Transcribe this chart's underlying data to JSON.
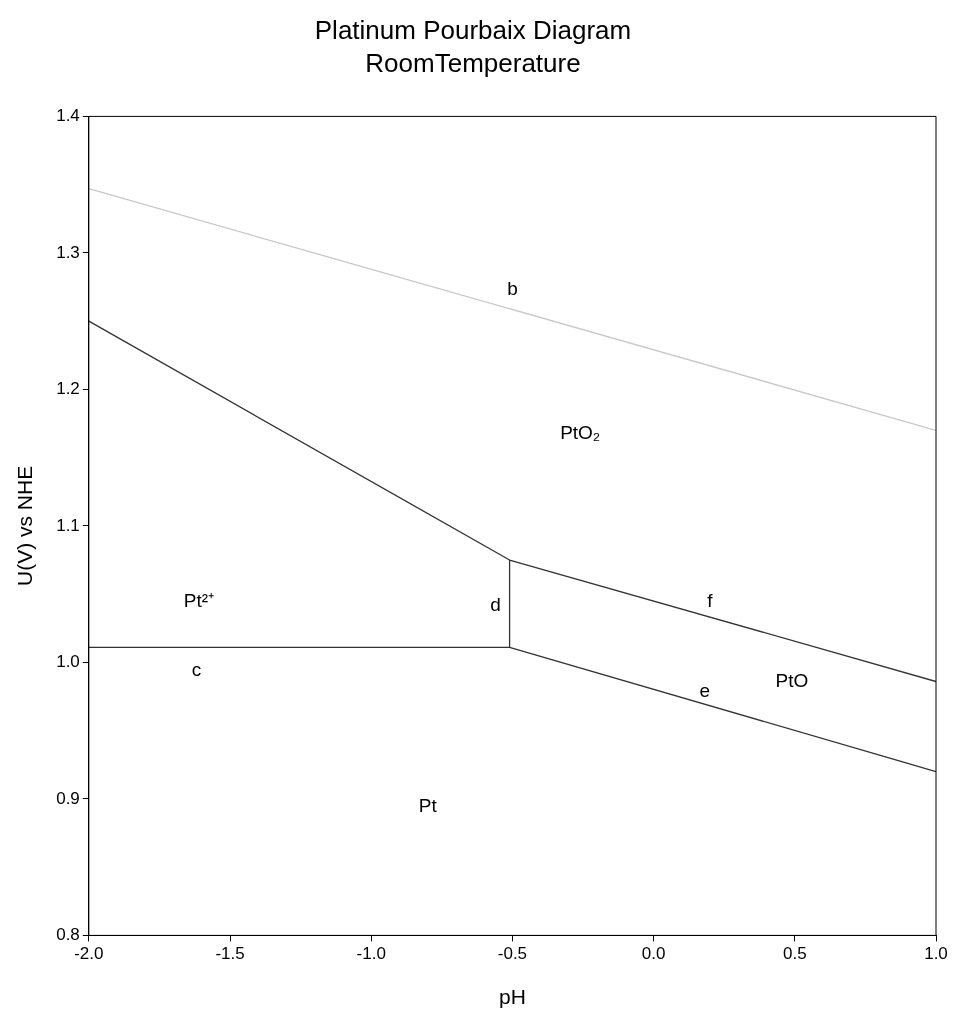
{
  "chart_data": {
    "type": "line",
    "title": "Platinum Pourbaix Diagram",
    "subtitle": "RoomTemperature",
    "xlabel": "pH",
    "ylabel": "U(V) vs NHE",
    "series": [
      {
        "color": "#c8c8c8",
        "x": [
          -2,
          1
        ],
        "values": [
          1.347,
          1.17
        ]
      },
      {
        "color": "#333333",
        "x": [
          -2,
          -0.51,
          1
        ],
        "values": [
          1.25,
          1.075,
          0.986
        ]
      },
      {
        "color": "#333333",
        "x": [
          -2,
          -0.51,
          1
        ],
        "values": [
          1.011,
          1.011,
          0.92
        ]
      },
      {
        "color": "#333333",
        "x": [
          -0.51,
          -0.51
        ],
        "values": [
          1.011,
          1.075
        ]
      }
    ],
    "xlim": [
      -2,
      1
    ],
    "xticks": [
      {
        "value": -2,
        "label": "-2.0"
      },
      {
        "value": -1.5,
        "label": "-1.5"
      },
      {
        "value": -1,
        "label": "-1.0"
      },
      {
        "value": -0.5,
        "label": "-0.5"
      },
      {
        "value": 0,
        "label": "0.0"
      },
      {
        "value": 0.5,
        "label": "0.5"
      },
      {
        "value": 1,
        "label": "1.0"
      }
    ],
    "ylim": [
      0.8,
      1.4
    ],
    "yticks": [
      0.8,
      0.9,
      {
        "value": 1,
        "label": "1.0"
      },
      1.1,
      1.2,
      1.3,
      1.4
    ],
    "annotations": [
      "b",
      "PtO₂",
      "Pt²⁺",
      "d",
      "f",
      "c",
      "e",
      "PtO",
      "Pt"
    ],
    "grid": false,
    "legend": false,
    "marker": "none",
    "line_style": "solid"
  }
}
